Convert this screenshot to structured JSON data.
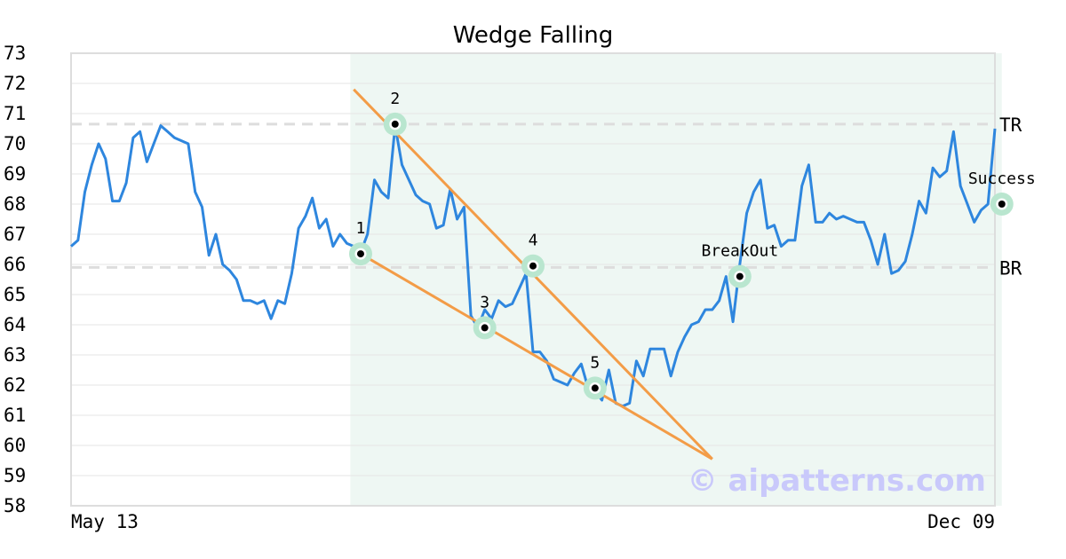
{
  "chart_data": {
    "type": "line",
    "title": "Wedge Falling",
    "xlabel": "",
    "ylabel": "",
    "ylim": [
      58,
      73
    ],
    "y_ticks": [
      58,
      59,
      60,
      61,
      62,
      63,
      64,
      65,
      66,
      67,
      68,
      69,
      70,
      71,
      72,
      73
    ],
    "x_tick_labels": [
      "May 13",
      "Dec 09"
    ],
    "grid": true,
    "colors": {
      "line": "#2e86de",
      "wedge": "#f39c47",
      "highlight": "#eef7f3",
      "marker_halo": "#b9e6cf",
      "level_line": "#dddddd",
      "watermark": "#c9c9fb"
    },
    "series": [
      {
        "values": [
          66.6,
          66.8,
          68.4,
          69.3,
          70.0,
          69.5,
          68.1,
          68.1,
          68.7,
          70.2,
          70.4,
          69.4,
          70.0,
          70.6,
          70.4,
          70.2,
          70.1,
          70.0,
          68.4,
          67.9,
          66.3,
          67.0,
          66.0,
          65.8,
          65.5,
          64.8,
          64.8,
          64.7,
          64.8,
          64.2,
          64.8,
          64.7,
          65.7,
          67.2,
          67.6,
          68.2,
          67.2,
          67.5,
          66.6,
          67.0,
          66.7,
          66.6,
          66.4,
          67.0,
          68.8,
          68.4,
          68.2,
          70.6,
          69.3,
          68.8,
          68.3,
          68.1,
          68.0,
          67.2,
          67.3,
          68.5,
          67.5,
          67.9,
          64.3,
          63.9,
          64.5,
          64.2,
          64.8,
          64.6,
          64.7,
          65.2,
          65.7,
          63.1,
          63.1,
          62.8,
          62.2,
          62.1,
          62.0,
          62.4,
          62.7,
          61.9,
          61.8,
          61.5,
          62.5,
          61.4,
          61.3,
          61.4,
          62.8,
          62.3,
          63.2,
          63.2,
          63.2,
          62.3,
          63.1,
          63.6,
          64.0,
          64.1,
          64.5,
          64.5,
          64.8,
          65.6,
          64.1,
          66.0,
          67.7,
          68.4,
          68.8,
          67.2,
          67.3,
          66.6,
          66.8,
          66.8,
          68.6,
          69.3,
          67.4,
          67.4,
          67.7,
          67.5,
          67.6,
          67.5,
          67.4,
          67.4,
          66.8,
          66.0,
          67.0,
          65.7,
          65.8,
          66.1,
          67.0,
          68.1,
          67.7,
          69.2,
          68.9,
          69.1,
          70.4,
          68.6,
          68.0,
          67.4,
          67.8,
          68.0,
          70.5
        ]
      }
    ],
    "levels": [
      {
        "label": "TR",
        "value": 70.65
      },
      {
        "label": "BR",
        "value": 65.9
      }
    ],
    "wedge_lines": [
      {
        "from": [
          41,
          71.8
        ],
        "to": [
          93,
          59.55
        ]
      },
      {
        "from": [
          42,
          66.35
        ],
        "to": [
          93,
          59.55
        ]
      }
    ],
    "pivots": [
      {
        "label": "1",
        "index": 42,
        "value": 66.35
      },
      {
        "label": "2",
        "index": 47,
        "value": 70.65
      },
      {
        "label": "3",
        "index": 60,
        "value": 63.9
      },
      {
        "label": "4",
        "index": 67,
        "value": 65.95
      },
      {
        "label": "5",
        "index": 76,
        "value": 61.9
      },
      {
        "label": "BreakOut",
        "index": 97,
        "value": 65.6
      },
      {
        "label": "Success",
        "index": 135,
        "value": 68.0
      }
    ],
    "highlight_range": [
      40.5,
      135
    ]
  },
  "watermark": "© aipatterns.com"
}
